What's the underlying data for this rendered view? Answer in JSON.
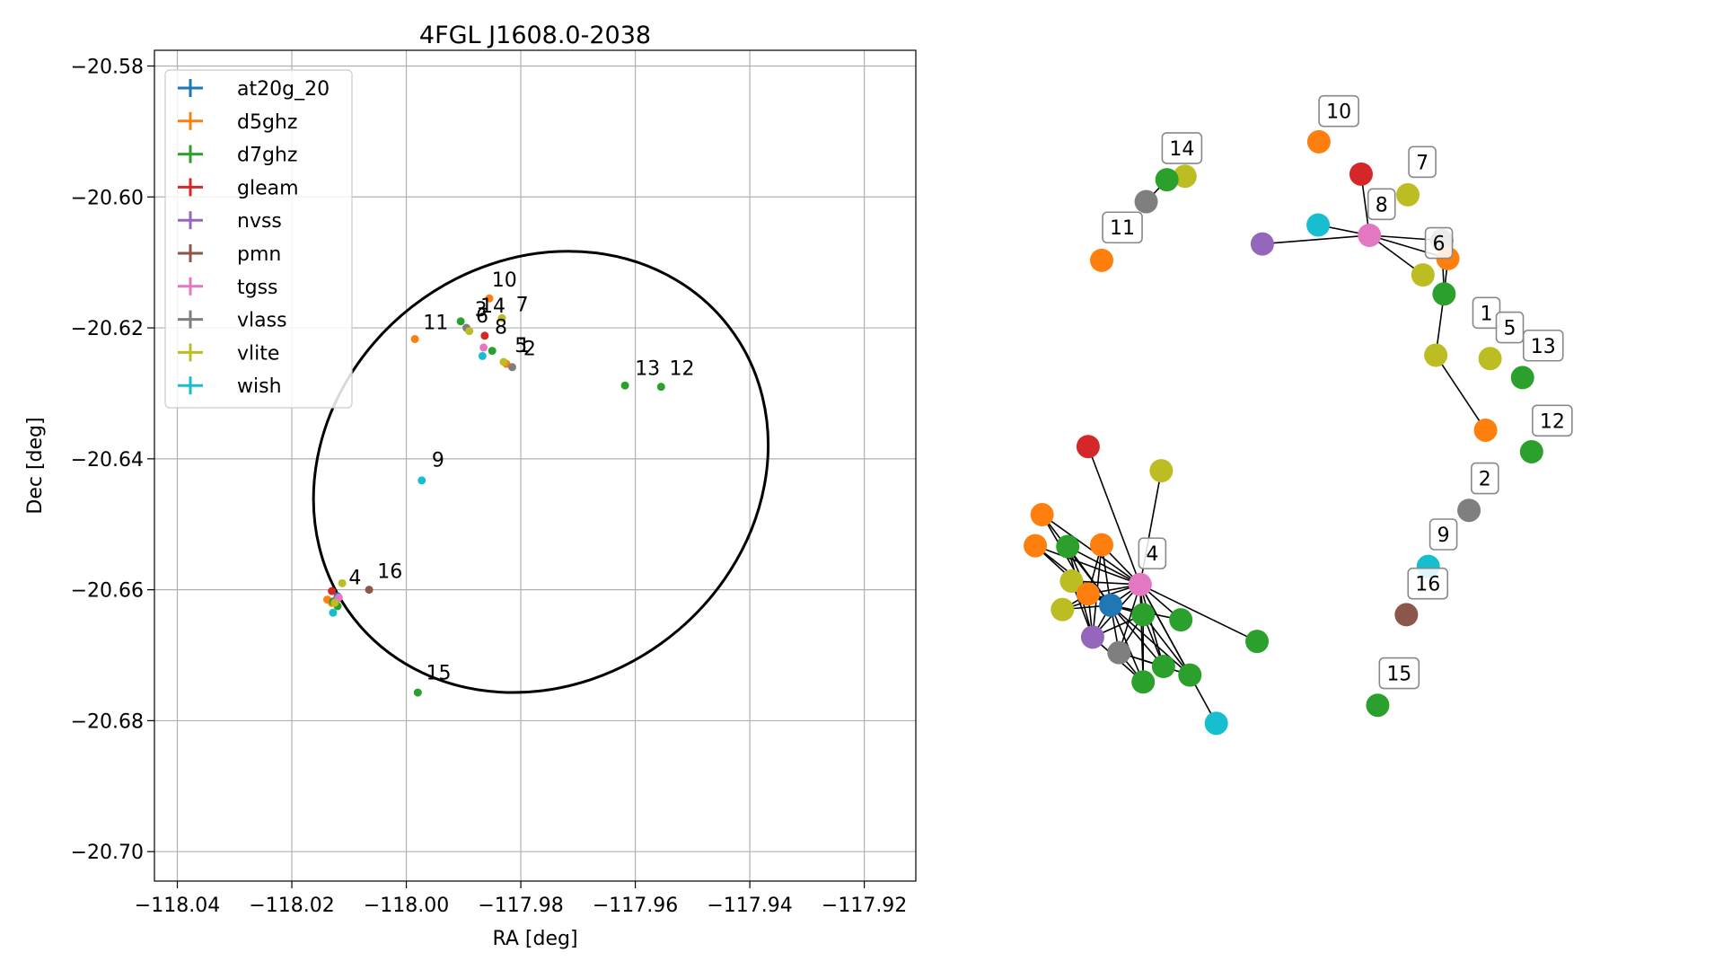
{
  "chart_data": [
    {
      "type": "scatter",
      "title": "4FGL J1608.0-2038",
      "xlabel": "RA [deg]",
      "ylabel": "Dec [deg]",
      "xlim": [
        -118.044,
        -117.911
      ],
      "ylim": [
        -20.7045,
        -20.5776
      ],
      "xticks": [
        -118.04,
        -118.02,
        -118.0,
        -117.98,
        -117.96,
        -117.94,
        -117.92
      ],
      "yticks": [
        -20.58,
        -20.6,
        -20.62,
        -20.64,
        -20.66,
        -20.68,
        -20.7
      ],
      "xtick_labels": [
        "−118.04",
        "−118.02",
        "−118.00",
        "−117.98",
        "−117.96",
        "−117.94",
        "−117.92"
      ],
      "ytick_labels": [
        "−20.58",
        "−20.60",
        "−20.62",
        "−20.64",
        "−20.66",
        "−20.68",
        "−20.70"
      ],
      "grid": true,
      "legend_position": "top-left",
      "legend": [
        {
          "name": "at20g_20",
          "color": "#1f77b4"
        },
        {
          "name": "d5ghz",
          "color": "#ff7f0e"
        },
        {
          "name": "d7ghz",
          "color": "#2ca02c"
        },
        {
          "name": "gleam",
          "color": "#d62728"
        },
        {
          "name": "nvss",
          "color": "#9467bd"
        },
        {
          "name": "pmn",
          "color": "#8c564b"
        },
        {
          "name": "tgss",
          "color": "#e377c2"
        },
        {
          "name": "vlass",
          "color": "#7f7f7f"
        },
        {
          "name": "vlite",
          "color": "#bcbd22"
        },
        {
          "name": "wish",
          "color": "#17becf"
        }
      ],
      "ellipse": {
        "center_ra": -117.9765,
        "center_dec": -20.642,
        "semi_a_deg": 0.0415,
        "semi_b_deg": 0.032,
        "angle_deg": 38
      },
      "points": [
        {
          "ra": -118.012,
          "dec": -20.661,
          "color": "#1f77b4"
        },
        {
          "ra": -118.0138,
          "dec": -20.6615,
          "color": "#ff7f0e"
        },
        {
          "ra": -118.013,
          "dec": -20.662,
          "color": "#ff7f0e"
        },
        {
          "ra": -117.9985,
          "dec": -20.6217,
          "color": "#ff7f0e"
        },
        {
          "ra": -117.9855,
          "dec": -20.6155,
          "color": "#ff7f0e"
        },
        {
          "ra": -117.9825,
          "dec": -20.6255,
          "color": "#ff7f0e"
        },
        {
          "ra": -118.012,
          "dec": -20.6625,
          "color": "#2ca02c"
        },
        {
          "ra": -118.0128,
          "dec": -20.6618,
          "color": "#2ca02c"
        },
        {
          "ra": -117.9905,
          "dec": -20.619,
          "color": "#2ca02c"
        },
        {
          "ra": -117.985,
          "dec": -20.6235,
          "color": "#2ca02c"
        },
        {
          "ra": -117.9618,
          "dec": -20.6288,
          "color": "#2ca02c"
        },
        {
          "ra": -117.9555,
          "dec": -20.629,
          "color": "#2ca02c"
        },
        {
          "ra": -117.998,
          "dec": -20.6757,
          "color": "#2ca02c"
        },
        {
          "ra": -118.013,
          "dec": -20.6602,
          "color": "#d62728"
        },
        {
          "ra": -117.9863,
          "dec": -20.6212,
          "color": "#d62728"
        },
        {
          "ra": -118.0122,
          "dec": -20.6615,
          "color": "#9467bd"
        },
        {
          "ra": -118.0065,
          "dec": -20.66,
          "color": "#8c564b"
        },
        {
          "ra": -118.0118,
          "dec": -20.6612,
          "color": "#e377c2"
        },
        {
          "ra": -117.9865,
          "dec": -20.623,
          "color": "#e377c2"
        },
        {
          "ra": -117.9895,
          "dec": -20.62,
          "color": "#7f7f7f"
        },
        {
          "ra": -117.9815,
          "dec": -20.626,
          "color": "#7f7f7f"
        },
        {
          "ra": -118.0112,
          "dec": -20.659,
          "color": "#bcbd22"
        },
        {
          "ra": -118.0125,
          "dec": -20.662,
          "color": "#bcbd22"
        },
        {
          "ra": -117.989,
          "dec": -20.6205,
          "color": "#bcbd22"
        },
        {
          "ra": -117.9833,
          "dec": -20.6185,
          "color": "#bcbd22"
        },
        {
          "ra": -117.983,
          "dec": -20.6252,
          "color": "#bcbd22"
        },
        {
          "ra": -118.0128,
          "dec": -20.6635,
          "color": "#17becf"
        },
        {
          "ra": -117.9867,
          "dec": -20.6243,
          "color": "#17becf"
        },
        {
          "ra": -117.9973,
          "dec": -20.6433,
          "color": "#17becf"
        }
      ],
      "annotations": [
        {
          "text": "10",
          "ra": -117.986,
          "dec": -20.6145
        },
        {
          "text": "14",
          "ra": -117.988,
          "dec": -20.6185
        },
        {
          "text": "3",
          "ra": -117.989,
          "dec": -20.619
        },
        {
          "text": "6",
          "ra": -117.9888,
          "dec": -20.62
        },
        {
          "text": "7",
          "ra": -117.9818,
          "dec": -20.6183
        },
        {
          "text": "11",
          "ra": -117.998,
          "dec": -20.621
        },
        {
          "text": "8",
          "ra": -117.9855,
          "dec": -20.6217
        },
        {
          "text": "5",
          "ra": -117.982,
          "dec": -20.6245
        },
        {
          "text": "1",
          "ra": -117.9815,
          "dec": -20.6245
        },
        {
          "text": "2",
          "ra": -117.9805,
          "dec": -20.625
        },
        {
          "text": "13",
          "ra": -117.961,
          "dec": -20.628
        },
        {
          "text": "12",
          "ra": -117.955,
          "dec": -20.628
        },
        {
          "text": "9",
          "ra": -117.9965,
          "dec": -20.642
        },
        {
          "text": "4",
          "ra": -118.011,
          "dec": -20.66
        },
        {
          "text": "16",
          "ra": -118.006,
          "dec": -20.659
        },
        {
          "text": "15",
          "ra": -117.9975,
          "dec": -20.6745
        }
      ]
    },
    {
      "type": "diagram",
      "nodes": [
        {
          "id": "n1",
          "color": "#bcbd22",
          "nx": 0.2855,
          "ny": 0.1315
        },
        {
          "id": "n2",
          "color": "#2ca02c",
          "nx": 0.2615,
          "ny": 0.1355
        },
        {
          "id": "n3",
          "color": "#7f7f7f",
          "nx": 0.234,
          "ny": 0.161
        },
        {
          "id": "n4",
          "color": "#ff7f0e",
          "nx": 0.175,
          "ny": 0.229
        },
        {
          "id": "n5",
          "color": "#ff7f0e",
          "nx": 0.463,
          "ny": 0.0915
        },
        {
          "id": "n6",
          "color": "#d62728",
          "nx": 0.519,
          "ny": 0.129
        },
        {
          "id": "n7",
          "color": "#bcbd22",
          "nx": 0.581,
          "ny": 0.153
        },
        {
          "id": "n8",
          "color": "#17becf",
          "nx": 0.462,
          "ny": 0.188
        },
        {
          "id": "n9",
          "color": "#e377c2",
          "nx": 0.53,
          "ny": 0.2
        },
        {
          "id": "n10",
          "color": "#9467bd",
          "nx": 0.388,
          "ny": 0.21
        },
        {
          "id": "n11",
          "color": "#7f7f7f",
          "nx": 0.626,
          "ny": 0.206
        },
        {
          "id": "n12",
          "color": "#ff7f0e",
          "nx": 0.634,
          "ny": 0.227
        },
        {
          "id": "n13",
          "color": "#bcbd22",
          "nx": 0.601,
          "ny": 0.246
        },
        {
          "id": "n14",
          "color": "#2ca02c",
          "nx": 0.629,
          "ny": 0.268
        },
        {
          "id": "n15",
          "color": "#bcbd22",
          "nx": 0.618,
          "ny": 0.339
        },
        {
          "id": "n16",
          "color": "#bcbd22",
          "nx": 0.69,
          "ny": 0.343
        },
        {
          "id": "n17",
          "color": "#2ca02c",
          "nx": 0.733,
          "ny": 0.365
        },
        {
          "id": "n18",
          "color": "#ff7f0e",
          "nx": 0.684,
          "ny": 0.426
        },
        {
          "id": "n19",
          "color": "#2ca02c",
          "nx": 0.745,
          "ny": 0.451
        },
        {
          "id": "n20",
          "color": "#7f7f7f",
          "nx": 0.662,
          "ny": 0.519
        },
        {
          "id": "n21",
          "color": "#17becf",
          "nx": 0.608,
          "ny": 0.584
        },
        {
          "id": "n22",
          "color": "#8c564b",
          "nx": 0.579,
          "ny": 0.64
        },
        {
          "id": "n23",
          "color": "#2ca02c",
          "nx": 0.541,
          "ny": 0.745
        },
        {
          "id": "n24",
          "color": "#d62728",
          "nx": 0.157,
          "ny": 0.445
        },
        {
          "id": "n25",
          "color": "#bcbd22",
          "nx": 0.254,
          "ny": 0.473
        },
        {
          "id": "n26",
          "color": "#ff7f0e",
          "nx": 0.096,
          "ny": 0.524
        },
        {
          "id": "n27",
          "color": "#ff7f0e",
          "nx": 0.087,
          "ny": 0.56
        },
        {
          "id": "n28",
          "color": "#2ca02c",
          "nx": 0.13,
          "ny": 0.561
        },
        {
          "id": "n29",
          "color": "#ff7f0e",
          "nx": 0.175,
          "ny": 0.559
        },
        {
          "id": "n30",
          "color": "#bcbd22",
          "nx": 0.135,
          "ny": 0.601
        },
        {
          "id": "n31",
          "color": "#e377c2",
          "nx": 0.226,
          "ny": 0.605
        },
        {
          "id": "n32",
          "color": "#ff7f0e",
          "nx": 0.157,
          "ny": 0.616
        },
        {
          "id": "n33",
          "color": "#1f77b4",
          "nx": 0.187,
          "ny": 0.629
        },
        {
          "id": "n34",
          "color": "#bcbd22",
          "nx": 0.123,
          "ny": 0.634
        },
        {
          "id": "n35",
          "color": "#2ca02c",
          "nx": 0.23,
          "ny": 0.64
        },
        {
          "id": "n36",
          "color": "#2ca02c",
          "nx": 0.28,
          "ny": 0.646
        },
        {
          "id": "n37",
          "color": "#2ca02c",
          "nx": 0.381,
          "ny": 0.671
        },
        {
          "id": "n38",
          "color": "#9467bd",
          "nx": 0.163,
          "ny": 0.666
        },
        {
          "id": "n39",
          "color": "#7f7f7f",
          "nx": 0.198,
          "ny": 0.684
        },
        {
          "id": "n40",
          "color": "#2ca02c",
          "nx": 0.257,
          "ny": 0.7
        },
        {
          "id": "n41",
          "color": "#2ca02c",
          "nx": 0.23,
          "ny": 0.718
        },
        {
          "id": "n42",
          "color": "#2ca02c",
          "nx": 0.292,
          "ny": 0.71
        },
        {
          "id": "n43",
          "color": "#17becf",
          "nx": 0.327,
          "ny": 0.766
        }
      ],
      "edges": [
        [
          "n2",
          "n3"
        ],
        [
          "n6",
          "n9"
        ],
        [
          "n10",
          "n9"
        ],
        [
          "n8",
          "n9"
        ],
        [
          "n9",
          "n11"
        ],
        [
          "n9",
          "n12"
        ],
        [
          "n9",
          "n13"
        ],
        [
          "n11",
          "n14"
        ],
        [
          "n12",
          "n14"
        ],
        [
          "n14",
          "n15"
        ],
        [
          "n15",
          "n18"
        ],
        [
          "n24",
          "n31"
        ],
        [
          "n25",
          "n31"
        ],
        [
          "n26",
          "n31"
        ],
        [
          "n27",
          "n31"
        ],
        [
          "n28",
          "n31"
        ],
        [
          "n29",
          "n31"
        ],
        [
          "n30",
          "n31"
        ],
        [
          "n32",
          "n31"
        ],
        [
          "n33",
          "n31"
        ],
        [
          "n34",
          "n31"
        ],
        [
          "n35",
          "n31"
        ],
        [
          "n36",
          "n31"
        ],
        [
          "n37",
          "n31"
        ],
        [
          "n38",
          "n31"
        ],
        [
          "n39",
          "n31"
        ],
        [
          "n40",
          "n31"
        ],
        [
          "n41",
          "n31"
        ],
        [
          "n42",
          "n31"
        ],
        [
          "n43",
          "n31"
        ],
        [
          "n26",
          "n33"
        ],
        [
          "n27",
          "n33"
        ],
        [
          "n28",
          "n33"
        ],
        [
          "n29",
          "n33"
        ],
        [
          "n30",
          "n33"
        ],
        [
          "n32",
          "n33"
        ],
        [
          "n34",
          "n33"
        ],
        [
          "n35",
          "n33"
        ],
        [
          "n38",
          "n33"
        ],
        [
          "n39",
          "n33"
        ],
        [
          "n40",
          "n33"
        ],
        [
          "n41",
          "n33"
        ],
        [
          "n42",
          "n33"
        ],
        [
          "n36",
          "n33"
        ],
        [
          "n28",
          "n38"
        ],
        [
          "n32",
          "n38"
        ],
        [
          "n29",
          "n38"
        ],
        [
          "n30",
          "n38"
        ],
        [
          "n35",
          "n38"
        ],
        [
          "n41",
          "n38"
        ],
        [
          "n26",
          "n32"
        ],
        [
          "n27",
          "n32"
        ],
        [
          "n28",
          "n32"
        ],
        [
          "n29",
          "n32"
        ],
        [
          "n30",
          "n32"
        ],
        [
          "n34",
          "n32"
        ],
        [
          "n35",
          "n39"
        ],
        [
          "n40",
          "n39"
        ],
        [
          "n41",
          "n39"
        ],
        [
          "n42",
          "n39"
        ],
        [
          "n35",
          "n41"
        ],
        [
          "n35",
          "n40"
        ],
        [
          "n35",
          "n42"
        ]
      ],
      "labels": [
        {
          "text": "14",
          "nx": 0.26,
          "ny": 0.102
        },
        {
          "text": "10",
          "nx": 0.468,
          "ny": 0.059
        },
        {
          "text": "7",
          "nx": 0.587,
          "ny": 0.118
        },
        {
          "text": "11",
          "nx": 0.181,
          "ny": 0.194
        },
        {
          "text": "8",
          "nx": 0.533,
          "ny": 0.167
        },
        {
          "text": "6",
          "nx": 0.609,
          "ny": 0.212
        },
        {
          "text": "1",
          "nx": 0.672,
          "ny": 0.293
        },
        {
          "text": "5",
          "nx": 0.703,
          "ny": 0.31
        },
        {
          "text": "13",
          "nx": 0.739,
          "ny": 0.331
        },
        {
          "text": "12",
          "nx": 0.751,
          "ny": 0.418
        },
        {
          "text": "2",
          "nx": 0.67,
          "ny": 0.485
        },
        {
          "text": "9",
          "nx": 0.615,
          "ny": 0.55
        },
        {
          "text": "16",
          "nx": 0.586,
          "ny": 0.607
        },
        {
          "text": "15",
          "nx": 0.548,
          "ny": 0.711
        },
        {
          "text": "4",
          "nx": 0.229,
          "ny": 0.572
        }
      ]
    }
  ]
}
